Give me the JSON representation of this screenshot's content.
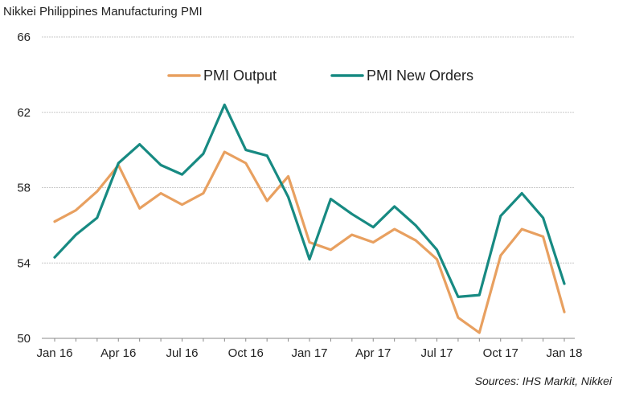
{
  "chart_data": {
    "type": "line",
    "title": "Nikkei Philippines Manufacturing PMI",
    "source": "Sources: IHS Markit, Nikkei",
    "ylim": [
      50,
      66
    ],
    "yticks": [
      50,
      54,
      58,
      62,
      66
    ],
    "x_tick_labels": [
      "Jan 16",
      "Apr 16",
      "Jul 16",
      "Oct 16",
      "Jan 17",
      "Apr 17",
      "Jul 17",
      "Oct 17",
      "Jan 18"
    ],
    "x_tick_positions": [
      0,
      3,
      6,
      9,
      12,
      15,
      18,
      21,
      24
    ],
    "x": [
      "Jan 16",
      "Feb 16",
      "Mar 16",
      "Apr 16",
      "May 16",
      "Jun 16",
      "Jul 16",
      "Aug 16",
      "Sep 16",
      "Oct 16",
      "Nov 16",
      "Dec 16",
      "Jan 17",
      "Feb 17",
      "Mar 17",
      "Apr 17",
      "May 17",
      "Jun 17",
      "Jul 17",
      "Aug 17",
      "Sep 17",
      "Oct 17",
      "Nov 17",
      "Dec 17",
      "Jan 18"
    ],
    "grid": "horizontal",
    "legend_position": "top",
    "series": [
      {
        "name": "PMI Output",
        "color": "#E8A060",
        "values": [
          56.2,
          56.8,
          57.8,
          59.2,
          56.9,
          57.7,
          57.1,
          57.7,
          59.9,
          59.3,
          57.3,
          58.6,
          55.1,
          54.7,
          55.5,
          55.1,
          55.8,
          55.2,
          54.2,
          51.1,
          50.3,
          54.4,
          55.8,
          55.4,
          51.4
        ]
      },
      {
        "name": "PMI New Orders",
        "color": "#178A82",
        "values": [
          54.3,
          55.5,
          56.4,
          59.3,
          60.3,
          59.2,
          58.7,
          59.8,
          62.4,
          60.0,
          59.7,
          57.5,
          54.2,
          57.4,
          56.6,
          55.9,
          57.0,
          56.0,
          54.7,
          52.2,
          52.3,
          56.5,
          57.7,
          56.4,
          52.9
        ]
      }
    ]
  }
}
